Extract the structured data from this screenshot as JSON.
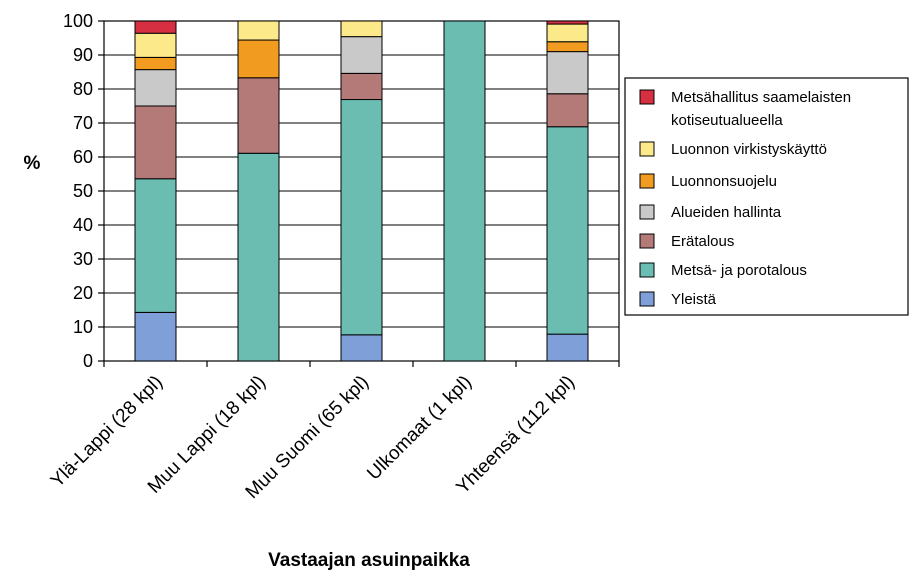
{
  "chart_data": {
    "type": "bar",
    "stacked": true,
    "title": "",
    "xlabel": "Vastaajan asuinpaikka",
    "ylabel": "%",
    "ylim": [
      0,
      100
    ],
    "yticks": [
      "0",
      "10",
      "20",
      "30",
      "40",
      "50",
      "60",
      "70",
      "80",
      "90",
      "100"
    ],
    "grid": true,
    "legend_position": "right",
    "categories": [
      "Ylä-Lappi (28 kpl)",
      "Muu Lappi (18 kpl)",
      "Muu Suomi (65 kpl)",
      "Ulkomaat (1 kpl)",
      "Yhteensä (112 kpl)"
    ],
    "series": [
      {
        "name": "Yleistä",
        "color": "#7f9fd8",
        "values": [
          14.3,
          0,
          7.7,
          0,
          7.9
        ]
      },
      {
        "name": "Metsä- ja porotalous",
        "color": "#6bbdb2",
        "values": [
          39.3,
          61.1,
          69.2,
          100,
          61.0
        ]
      },
      {
        "name": "Erätalous",
        "color": "#b47a78",
        "values": [
          21.4,
          22.2,
          7.7,
          0,
          9.7
        ]
      },
      {
        "name": "Alueiden hallinta",
        "color": "#c9c9c9",
        "values": [
          10.7,
          0,
          10.8,
          0,
          12.4
        ]
      },
      {
        "name": "Luonnonsuojelu",
        "color": "#f29b21",
        "values": [
          3.6,
          11.1,
          0,
          0,
          2.9
        ]
      },
      {
        "name": "Luonnon virkistyskäyttö",
        "color": "#fbe98a",
        "values": [
          7.1,
          5.6,
          4.6,
          0,
          5.2
        ]
      },
      {
        "name": "Metsähallitus saamelaisten kotiseutualueella",
        "label_lines": [
          "Metsähallitus saamelaisten",
          "kotiseutualueella"
        ],
        "color": "#d62f42",
        "values": [
          3.6,
          0,
          0,
          0,
          0.9
        ]
      }
    ]
  }
}
